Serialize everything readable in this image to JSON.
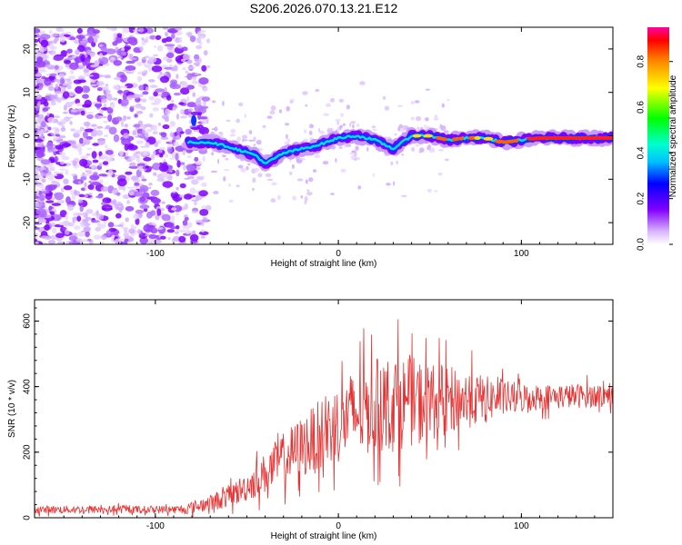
{
  "title": "S206.2026.070.13.21.E12",
  "chart_data": [
    {
      "type": "heatmap",
      "name": "spectrogram",
      "xlabel": "Height of straight line (km)",
      "ylabel": "Frequency (Hz)",
      "xlim": [
        -166,
        150
      ],
      "ylim": [
        -25,
        25
      ],
      "xticks": [
        -100,
        0,
        100
      ],
      "yticks": [
        20,
        10,
        0,
        -10,
        -20
      ],
      "colorbar": {
        "label": "Normalized spectral amplitude",
        "range": [
          0.0,
          0.95
        ],
        "ticks": [
          0.0,
          0.2,
          0.4,
          0.6,
          0.8
        ]
      },
      "ridge": [
        [
          -80,
          -1.5
        ],
        [
          -70,
          -1.5
        ],
        [
          -60,
          -2.5
        ],
        [
          -45,
          -4.5
        ],
        [
          -40,
          -6.5
        ],
        [
          -30,
          -4
        ],
        [
          -20,
          -3
        ],
        [
          -10,
          -2
        ],
        [
          0,
          -0.5
        ],
        [
          10,
          0
        ],
        [
          20,
          -1
        ],
        [
          30,
          -3
        ],
        [
          40,
          0
        ],
        [
          50,
          0
        ],
        [
          60,
          -1
        ],
        [
          70,
          -0.5
        ],
        [
          80,
          -0.5
        ],
        [
          90,
          -1.5
        ],
        [
          100,
          -1
        ],
        [
          110,
          -0.5
        ],
        [
          120,
          -0.5
        ],
        [
          140,
          -0.5
        ],
        [
          150,
          -0.5
        ]
      ]
    },
    {
      "type": "line",
      "name": "snr",
      "xlabel": "Height of straight line (km)",
      "ylabel": "SNR (10 * v/v)",
      "xlim": [
        -166,
        150
      ],
      "ylim": [
        0,
        665
      ],
      "xticks": [
        -100,
        0,
        100
      ],
      "yticks": [
        0,
        200,
        400,
        600
      ],
      "series_color": "#e63232",
      "trend": [
        [
          -166,
          25
        ],
        [
          -120,
          25
        ],
        [
          -85,
          25
        ],
        [
          -70,
          45
        ],
        [
          -60,
          65
        ],
        [
          -50,
          95
        ],
        [
          -40,
          135
        ],
        [
          -30,
          180
        ],
        [
          -20,
          215
        ],
        [
          -10,
          250
        ],
        [
          0,
          290
        ],
        [
          10,
          320
        ],
        [
          20,
          340
        ],
        [
          30,
          350
        ],
        [
          40,
          355
        ],
        [
          50,
          355
        ],
        [
          60,
          358
        ],
        [
          70,
          360
        ],
        [
          80,
          362
        ],
        [
          90,
          364
        ],
        [
          100,
          366
        ],
        [
          110,
          368
        ],
        [
          120,
          370
        ],
        [
          150,
          375
        ]
      ],
      "spread": [
        [
          -166,
          12
        ],
        [
          -90,
          12
        ],
        [
          -70,
          25
        ],
        [
          -50,
          45
        ],
        [
          -30,
          80
        ],
        [
          -10,
          110
        ],
        [
          10,
          140
        ],
        [
          30,
          150
        ],
        [
          50,
          120
        ],
        [
          70,
          90
        ],
        [
          90,
          55
        ],
        [
          110,
          40
        ],
        [
          150,
          35
        ]
      ]
    }
  ],
  "colors": {
    "line": "#e63232",
    "scatter": "#8000ff"
  }
}
